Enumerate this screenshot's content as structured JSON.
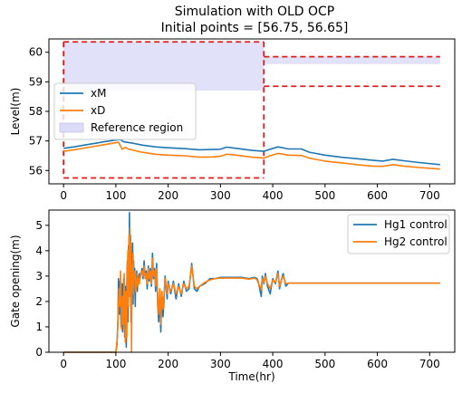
{
  "title": {
    "line1": "Simulation with OLD OCP",
    "line2": "Initial points = [56.75, 56.65]"
  },
  "colors": {
    "series_blue": "#1f77b4",
    "series_orange": "#ff7f0e",
    "reference_dash": "#e31a1c",
    "reference_fill": "#dcdcf8"
  },
  "chart_data": [
    {
      "type": "line",
      "ylabel": "Level(m)",
      "xlim": [
        -28,
        748
      ],
      "ylim": [
        55.55,
        60.45
      ],
      "xticks": [
        0,
        100,
        200,
        300,
        400,
        500,
        600,
        700
      ],
      "yticks": [
        56,
        57,
        58,
        59,
        60
      ],
      "legend_position": "center-left",
      "legend": [
        "xM",
        "xD",
        "Reference region"
      ],
      "reference_region": {
        "segments": [
          {
            "x": [
              0,
              383
            ],
            "y_low": 55.75,
            "y_high": 60.35,
            "fill_y_low": 58.7,
            "fill_y_high": 60.35
          },
          {
            "x": [
              383,
              720
            ],
            "y_low": 58.85,
            "y_high": 59.85,
            "fill_y_low": 59.6,
            "fill_y_high": 59.85
          }
        ]
      },
      "series": [
        {
          "name": "xM",
          "color": "#1f77b4",
          "x": [
            0,
            20,
            40,
            60,
            80,
            100,
            108,
            115,
            130,
            150,
            175,
            200,
            230,
            260,
            285,
            300,
            312,
            330,
            360,
            383,
            395,
            410,
            430,
            455,
            470,
            500,
            530,
            560,
            590,
            610,
            630,
            650,
            680,
            720
          ],
          "y": [
            56.75,
            56.8,
            56.86,
            56.92,
            56.98,
            57.03,
            57.05,
            56.97,
            56.93,
            56.86,
            56.8,
            56.77,
            56.74,
            56.7,
            56.71,
            56.72,
            56.79,
            56.75,
            56.68,
            56.65,
            56.72,
            56.8,
            56.73,
            56.73,
            56.62,
            56.52,
            56.45,
            56.4,
            56.35,
            56.32,
            56.38,
            56.33,
            56.27,
            56.2
          ]
        },
        {
          "name": "xD",
          "color": "#ff7f0e",
          "x": [
            0,
            20,
            40,
            60,
            80,
            100,
            105,
            112,
            118,
            125,
            150,
            175,
            200,
            230,
            260,
            285,
            300,
            312,
            330,
            360,
            383,
            395,
            410,
            430,
            455,
            470,
            500,
            530,
            560,
            590,
            610,
            630,
            650,
            680,
            720
          ],
          "y": [
            56.65,
            56.7,
            56.76,
            56.82,
            56.88,
            56.94,
            56.96,
            56.72,
            56.78,
            56.72,
            56.62,
            56.55,
            56.52,
            56.5,
            56.45,
            56.46,
            56.48,
            56.55,
            56.52,
            56.45,
            56.42,
            56.5,
            56.58,
            56.52,
            56.51,
            56.42,
            56.32,
            56.26,
            56.2,
            56.15,
            56.14,
            56.2,
            56.15,
            56.1,
            56.05
          ]
        }
      ]
    },
    {
      "type": "line",
      "xlabel": "Time(hr)",
      "ylabel": "Gate opening(m)",
      "xlim": [
        -28,
        748
      ],
      "ylim": [
        0,
        5.6
      ],
      "xticks": [
        0,
        100,
        200,
        300,
        400,
        500,
        600,
        700
      ],
      "yticks": [
        0,
        1,
        2,
        3,
        4,
        5
      ],
      "legend_position": "top-right",
      "legend": [
        "Hg1 control",
        "Hg2 control"
      ],
      "series": [
        {
          "name": "Hg1 control",
          "color": "#1f77b4",
          "x": [
            0,
            100,
            102,
            104,
            105,
            107,
            108,
            110,
            112,
            113,
            115,
            117,
            118,
            120,
            121,
            122,
            123,
            124,
            125,
            126,
            127,
            128,
            129,
            130,
            131,
            132,
            133,
            134,
            135,
            136,
            137,
            138,
            139,
            140,
            141,
            142,
            143,
            145,
            146,
            148,
            150,
            152,
            154,
            156,
            158,
            160,
            162,
            164,
            166,
            168,
            170,
            172,
            174,
            176,
            178,
            180,
            182,
            184,
            186,
            188,
            190,
            192,
            194,
            196,
            198,
            200,
            205,
            210,
            215,
            220,
            225,
            230,
            235,
            240,
            245,
            250,
            255,
            260,
            270,
            280,
            290,
            300,
            320,
            340,
            355,
            365,
            370,
            372,
            375,
            378,
            380,
            383,
            386,
            390,
            395,
            400,
            405,
            410,
            413,
            416,
            420,
            425,
            430,
            720
          ],
          "y": [
            0,
            0,
            0.3,
            1.3,
            2.9,
            1.5,
            2.8,
            1.0,
            2.7,
            0.8,
            2.9,
            0.6,
            2.6,
            0.2,
            2.5,
            3.6,
            1.2,
            4.2,
            2.5,
            5.5,
            3.1,
            4.6,
            1.2,
            3.8,
            2.2,
            4.3,
            1.9,
            3.6,
            2.4,
            3.3,
            1.8,
            3.0,
            2.6,
            3.2,
            2.4,
            3.0,
            2.8,
            3.1,
            2.9,
            3.1,
            3.3,
            2.9,
            3.6,
            3.0,
            3.2,
            2.5,
            3.4,
            2.8,
            3.3,
            2.6,
            3.9,
            2.9,
            3.3,
            2.4,
            3.5,
            1.9,
            1.2,
            2.3,
            0.8,
            2.2,
            1.4,
            2.0,
            3.0,
            2.6,
            2.1,
            2.8,
            2.3,
            2.8,
            2.1,
            2.7,
            2.2,
            2.8,
            2.4,
            2.5,
            3.5,
            2.5,
            2.4,
            2.6,
            2.7,
            2.9,
            2.9,
            2.95,
            2.95,
            2.95,
            2.9,
            2.95,
            2.9,
            2.8,
            2.5,
            2.2,
            3.0,
            2.7,
            3.1,
            2.6,
            2.3,
            2.9,
            2.7,
            3.2,
            2.5,
            2.8,
            3.1,
            2.6,
            2.72,
            2.72
          ]
        },
        {
          "name": "Hg2 control",
          "color": "#ff7f0e",
          "x": [
            0,
            100,
            103,
            105,
            106,
            108,
            109,
            111,
            113,
            114,
            116,
            118,
            119,
            121,
            122,
            123,
            124,
            125,
            126,
            127,
            128,
            129,
            130,
            131,
            132,
            133,
            134,
            135,
            136,
            137,
            138,
            139,
            140,
            141,
            142,
            143,
            145,
            146,
            148,
            150,
            152,
            154,
            156,
            158,
            160,
            162,
            164,
            166,
            168,
            170,
            172,
            174,
            176,
            178,
            180,
            182,
            184,
            186,
            188,
            190,
            192,
            194,
            196,
            198,
            200,
            205,
            210,
            215,
            220,
            225,
            230,
            235,
            240,
            245,
            250,
            255,
            260,
            270,
            280,
            290,
            300,
            320,
            340,
            355,
            365,
            370,
            372,
            375,
            378,
            380,
            383,
            386,
            390,
            395,
            400,
            405,
            410,
            413,
            416,
            420,
            425,
            430,
            720
          ],
          "y": [
            0,
            0,
            0.6,
            1.9,
            2.5,
            1.8,
            3.2,
            0.9,
            2.2,
            1.1,
            3.1,
            0.4,
            2.4,
            0.6,
            3.0,
            4.0,
            1.8,
            4.6,
            2.2,
            4.9,
            3.4,
            4.3,
            0.0,
            3.4,
            2.7,
            3.9,
            2.3,
            3.2,
            2.9,
            3.1,
            2.4,
            2.7,
            2.8,
            3.1,
            2.6,
            2.9,
            2.7,
            3.0,
            3.1,
            3.2,
            3.0,
            3.4,
            2.9,
            3.1,
            2.7,
            3.3,
            2.9,
            3.2,
            2.7,
            3.7,
            3.0,
            3.2,
            2.6,
            3.3,
            2.2,
            1.5,
            2.5,
            1.1,
            2.4,
            1.7,
            2.2,
            2.9,
            2.7,
            2.3,
            2.7,
            2.4,
            2.7,
            2.3,
            2.6,
            2.3,
            2.7,
            2.5,
            2.6,
            3.4,
            2.6,
            2.5,
            2.6,
            2.75,
            2.85,
            2.9,
            2.92,
            2.92,
            2.92,
            2.88,
            2.92,
            2.85,
            2.75,
            2.6,
            2.45,
            2.9,
            2.75,
            3.0,
            2.7,
            2.5,
            2.85,
            2.75,
            3.1,
            2.6,
            2.8,
            3.0,
            2.7,
            2.72,
            2.72
          ]
        }
      ]
    }
  ]
}
